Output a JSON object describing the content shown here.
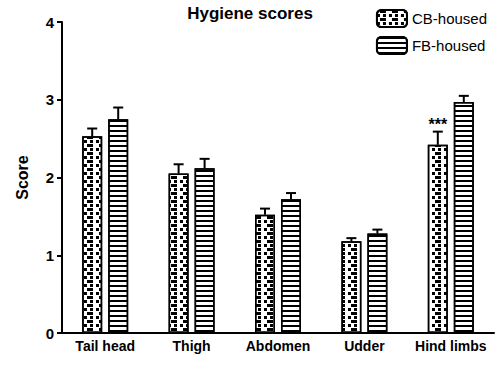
{
  "chart_data": {
    "type": "bar",
    "title": "Hygiene scores",
    "ylabel": "Score",
    "categories": [
      "Tail head",
      "Thigh",
      "Abdomen",
      "Udder",
      "Hind limbs"
    ],
    "series": [
      {
        "name": "CB-housed",
        "color": "#000000",
        "values": [
          2.53,
          2.05,
          1.52,
          1.18,
          2.42
        ],
        "errors": [
          0.1,
          0.12,
          0.08,
          0.04,
          0.17
        ]
      },
      {
        "name": "FB-housed",
        "color": "#000000",
        "values": [
          2.75,
          2.12,
          1.72,
          1.28,
          2.97
        ],
        "errors": [
          0.15,
          0.12,
          0.08,
          0.05,
          0.08
        ]
      }
    ],
    "annotations": [
      {
        "text": "***",
        "category": "Hind limbs",
        "series": "CB-housed"
      }
    ],
    "ylim": [
      0,
      4
    ],
    "yticks": [
      0,
      1,
      2,
      3,
      4
    ],
    "grid": false,
    "legend": "top-right"
  }
}
